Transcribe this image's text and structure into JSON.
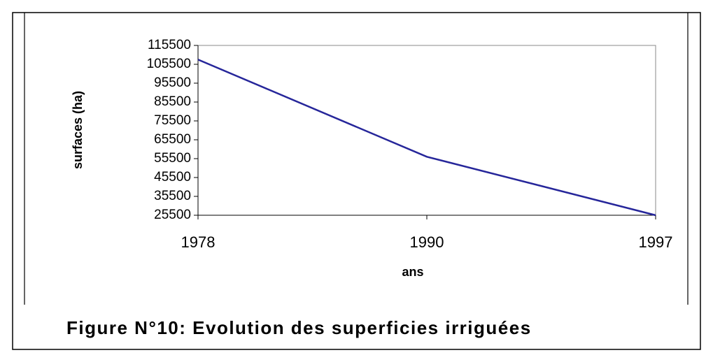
{
  "chart_data": {
    "type": "line",
    "title": "Figure N°10: Evolution des superficies irriguées",
    "x_label": "ans",
    "y_label": "surfaces (ha)",
    "categories": [
      "1978",
      "1990",
      "1997"
    ],
    "series": [
      {
        "name": "surfaces",
        "color": "#26269a",
        "values": [
          108000,
          56500,
          25500
        ]
      }
    ],
    "ylim": [
      25500,
      115500
    ],
    "yticks": [
      25500,
      35500,
      45500,
      55500,
      65500,
      75500,
      85500,
      95500,
      105500,
      115500
    ]
  }
}
